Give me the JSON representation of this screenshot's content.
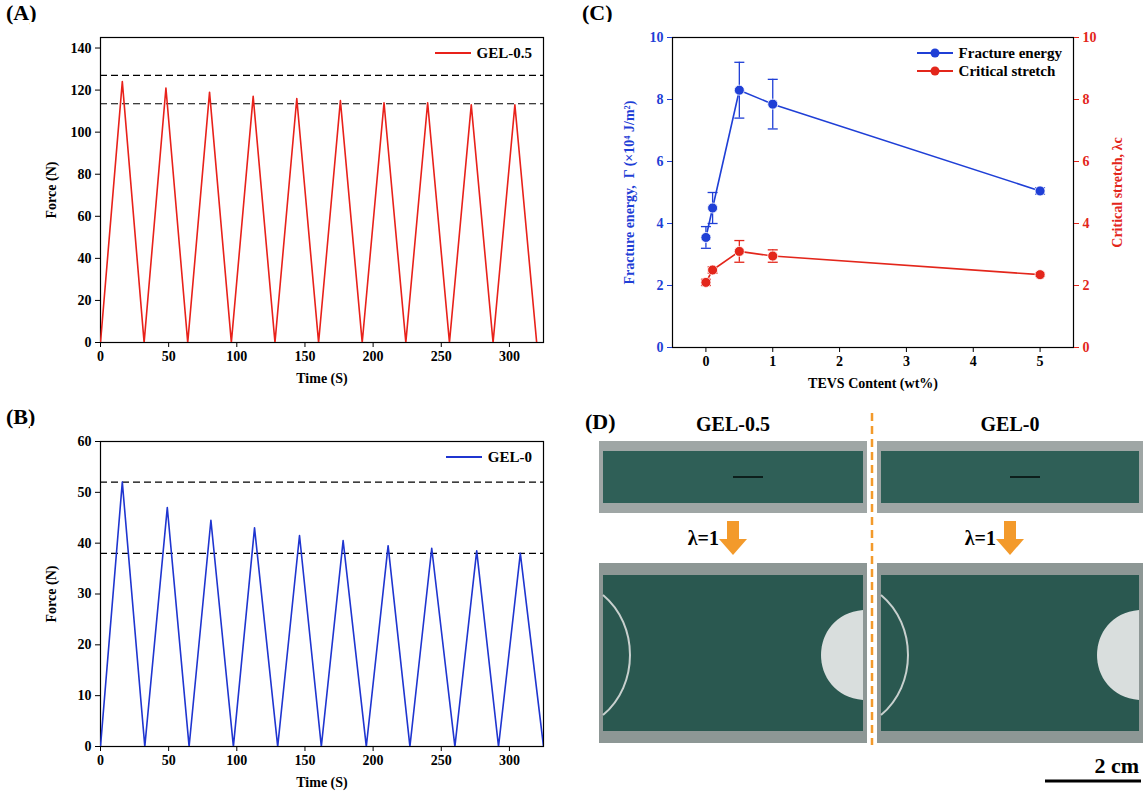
{
  "chart_data": [
    {
      "panel": "(A)",
      "type": "line",
      "x_label": "Time (S)",
      "y_label": "Force (N)",
      "xlim": [
        0,
        325
      ],
      "xticks": [
        0,
        50,
        100,
        150,
        200,
        250,
        300
      ],
      "ylim": [
        0,
        145
      ],
      "yticks": [
        0,
        20,
        40,
        60,
        80,
        100,
        120,
        140
      ],
      "hlines": [
        127,
        113.5
      ],
      "legend": "upper right",
      "x": [
        0,
        16,
        32,
        48,
        64,
        80,
        96,
        112,
        128,
        144,
        160,
        176,
        192,
        208,
        224,
        240,
        256,
        272,
        288,
        304,
        320
      ],
      "series": [
        {
          "name": "GEL-0.5",
          "color": "#e8211a",
          "values": [
            0,
            124,
            0,
            121,
            0,
            119,
            0,
            117,
            0,
            116,
            0,
            115,
            0,
            114,
            0,
            114,
            0,
            113,
            0,
            113,
            0
          ]
        }
      ]
    },
    {
      "panel": "(B)",
      "type": "line",
      "x_label": "Time (S)",
      "y_label": "Force (N)",
      "xlim": [
        0,
        325
      ],
      "xticks": [
        0,
        50,
        100,
        150,
        200,
        250,
        300
      ],
      "ylim": [
        0,
        60
      ],
      "yticks": [
        0,
        10,
        20,
        30,
        40,
        50,
        60
      ],
      "hlines": [
        52,
        38
      ],
      "legend": "upper right",
      "x": [
        0,
        16,
        32.5,
        49,
        65,
        81,
        97.5,
        113,
        130,
        146,
        162,
        178,
        195,
        211,
        227,
        243,
        260,
        276,
        292,
        308,
        325
      ],
      "series": [
        {
          "name": "GEL-0",
          "color": "#1f35d0",
          "values": [
            0,
            52,
            0,
            47,
            0,
            44.5,
            0,
            43,
            0,
            41.5,
            0,
            40.5,
            0,
            39.5,
            0,
            39,
            0,
            38.5,
            0,
            38,
            0
          ]
        }
      ]
    },
    {
      "panel": "(C)",
      "type": "line",
      "x_label": "TEVS Content (wt%)",
      "y_label": "Fracture energy,  Γ (×10⁴ J/m²)",
      "y2_label": "Critical stretch, λc",
      "xlim": [
        -0.5,
        5.5
      ],
      "xticks": [
        0,
        1,
        2,
        3,
        4,
        5
      ],
      "ylim": [
        0,
        10
      ],
      "yticks": [
        0,
        2,
        4,
        6,
        8,
        10
      ],
      "y2lim": [
        0,
        10
      ],
      "y2ticks": [
        0,
        2,
        4,
        6,
        8,
        10
      ],
      "legend": "upper right",
      "x": [
        0,
        0.1,
        0.5,
        1,
        5
      ],
      "series": [
        {
          "name": "Fracture energy",
          "color": "#1f3fd6",
          "marker": "circle",
          "values": [
            3.55,
            4.5,
            8.3,
            7.85,
            5.05
          ],
          "errors": [
            0.35,
            0.5,
            0.9,
            0.8,
            0.1
          ]
        },
        {
          "name": "Critical stretch",
          "color": "#e3261b",
          "marker": "circle",
          "axis": "y2",
          "values": [
            2.1,
            2.5,
            3.1,
            2.95,
            2.35
          ],
          "errors": [
            0.1,
            0.1,
            0.35,
            0.2,
            0.05
          ]
        }
      ]
    }
  ],
  "photo": {
    "panel": "(D)",
    "titles": [
      "GEL-0.5",
      "GEL-0"
    ],
    "stretch_labels": [
      "λ=1",
      "λ=1"
    ],
    "scale_bar": "2 cm"
  }
}
